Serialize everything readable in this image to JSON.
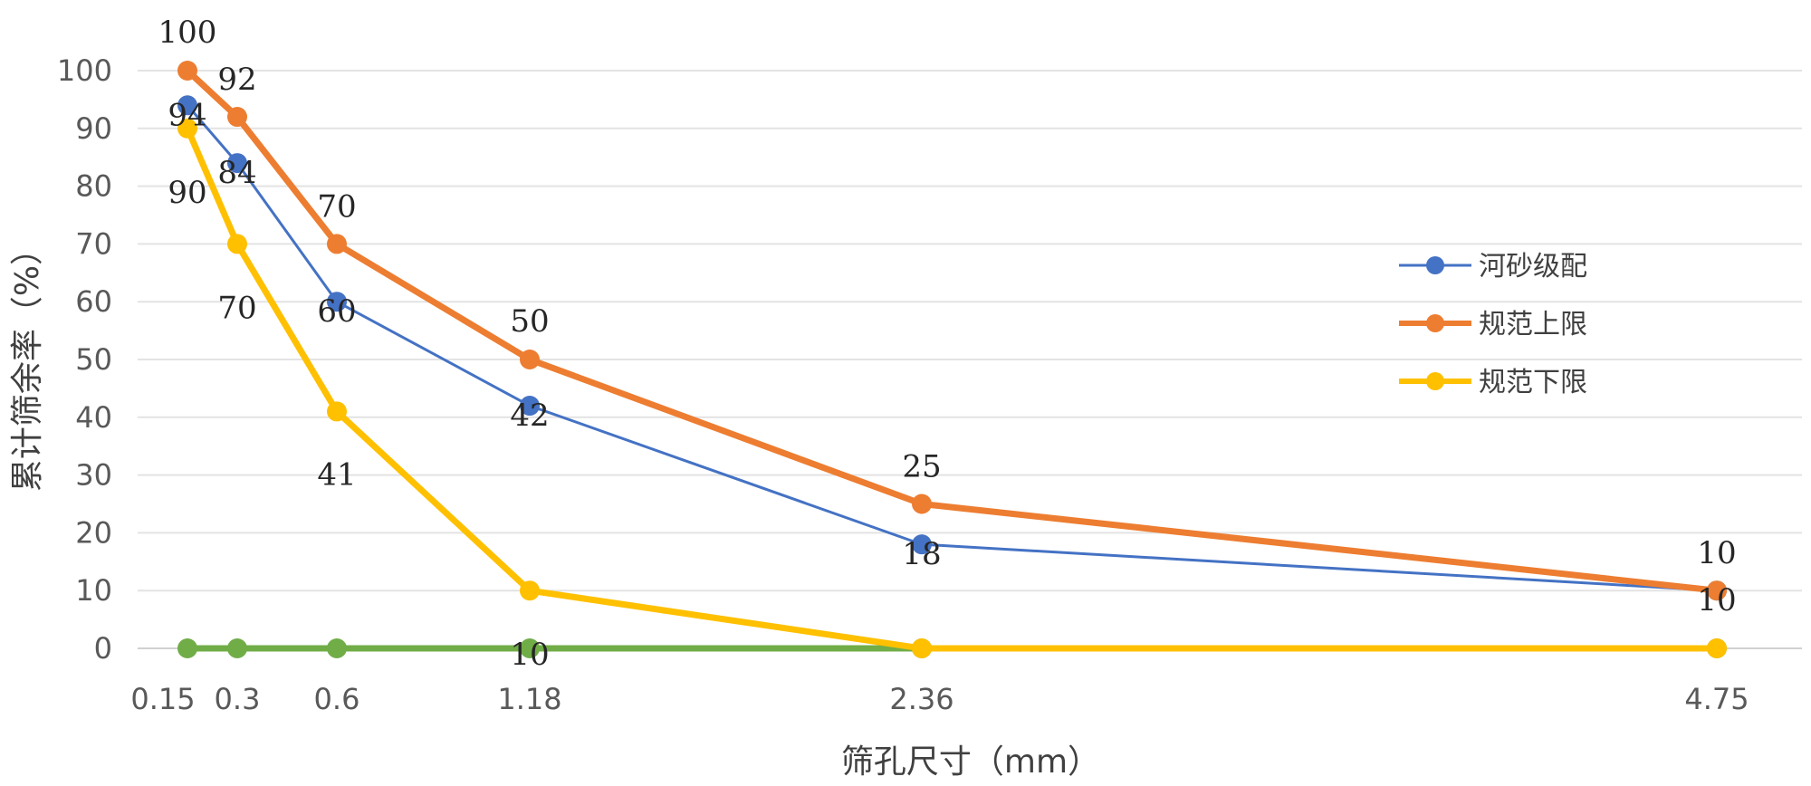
{
  "chart_data": {
    "type": "line",
    "title": "",
    "xlabel": "筛孔尺寸（mm）",
    "ylabel": "累计筛余率（%）",
    "x": [
      0.15,
      0.3,
      0.6,
      1.18,
      2.36,
      4.75
    ],
    "x_tick_labels": [
      "0.15",
      "0.3",
      "0.6",
      "1.18",
      "2.36",
      "4.75"
    ],
    "ylim": [
      0,
      100
    ],
    "y_ticks": [
      0,
      10,
      20,
      30,
      40,
      50,
      60,
      70,
      80,
      90,
      100
    ],
    "grid": true,
    "legend_position": "right",
    "series": [
      {
        "name": "河砂级配",
        "color": "#4472C4",
        "values": [
          94,
          84,
          60,
          42,
          18,
          10
        ],
        "labels": [
          "94",
          "84",
          "60",
          "42",
          "18",
          "10"
        ]
      },
      {
        "name": "规范上限",
        "color": "#ED7D31",
        "values": [
          100,
          92,
          70,
          50,
          25,
          10
        ],
        "labels": [
          "100",
          "92",
          "70",
          "50",
          "25",
          "10"
        ]
      },
      {
        "name": "规范下限",
        "color": "#FFC000",
        "values": [
          90,
          70,
          41,
          10,
          0,
          0
        ],
        "labels": [
          "90",
          "70",
          "41",
          "10",
          "",
          ""
        ]
      },
      {
        "name": "",
        "color": "#70AD47",
        "values": [
          0,
          0,
          0,
          0,
          0,
          0
        ],
        "labels": [
          "",
          "",
          "",
          "",
          "",
          ""
        ]
      }
    ]
  }
}
